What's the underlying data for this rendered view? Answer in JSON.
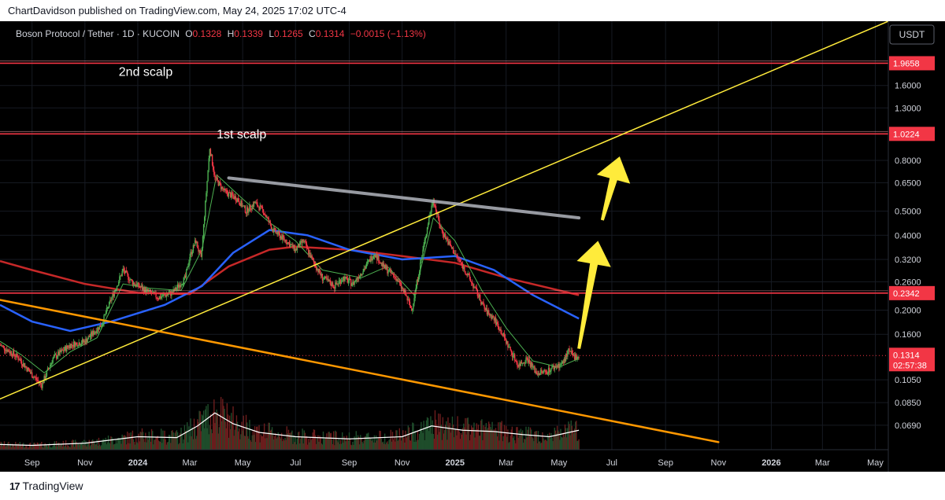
{
  "publish_line": "ChartDavidson published on TradingView.com, May 24, 2025 17:02 UTC-4",
  "footer": {
    "logo_glyph": "17",
    "brand": "TradingView"
  },
  "header": {
    "symbol": "Boson Protocol / Tether · 1D · KUCOIN",
    "o_label": "O",
    "o_value": "0.1328",
    "h_label": "H",
    "h_value": "0.1339",
    "l_label": "L",
    "l_value": "0.1265",
    "c_label": "C",
    "c_value": "0.1314",
    "change": "−0.0015 (−1.13%)"
  },
  "currency_button": "USDT",
  "price_badge": {
    "price": "0.1314",
    "countdown": "02:57:38",
    "color": "#f23645"
  },
  "colors": {
    "background": "#000000",
    "up": "#4caf50",
    "down": "#f23645",
    "resistance": "#f23645",
    "trendline": "#ffeb3b",
    "descending_line": "#ff9800",
    "ma_fast": "#4caf50",
    "ma_mid": "#2962ff",
    "ma_slow": "#c62828",
    "gray_line": "#b2b5be",
    "arrows": "#ffeb3b",
    "volume_ma": "#ffffff"
  },
  "chart_data": {
    "type": "candlestick",
    "symbol": "Boson Protocol / Tether",
    "interval": "1D",
    "exchange": "KUCOIN",
    "y_scale": "log",
    "ylim": [
      0.055,
      2.9
    ],
    "y_ticks": [
      "1.6000",
      "1.3000",
      "0.8000",
      "0.6500",
      "0.5000",
      "0.4000",
      "0.3200",
      "0.2600",
      "0.2000",
      "0.1600",
      "0.1050",
      "0.0850",
      "0.0690"
    ],
    "x_range": [
      "2023-07-26",
      "2026-05-16"
    ],
    "x_ticks": [
      {
        "label": "Sep",
        "date": "2023-09-01",
        "bold": false
      },
      {
        "label": "Nov",
        "date": "2023-11-01",
        "bold": false
      },
      {
        "label": "2024",
        "date": "2024-01-01",
        "bold": true
      },
      {
        "label": "Mar",
        "date": "2024-03-01",
        "bold": false
      },
      {
        "label": "May",
        "date": "2024-05-01",
        "bold": false
      },
      {
        "label": "Jul",
        "date": "2024-07-01",
        "bold": false
      },
      {
        "label": "Sep",
        "date": "2024-09-01",
        "bold": false
      },
      {
        "label": "Nov",
        "date": "2024-11-01",
        "bold": false
      },
      {
        "label": "2025",
        "date": "2025-01-01",
        "bold": true
      },
      {
        "label": "Mar",
        "date": "2025-03-01",
        "bold": false
      },
      {
        "label": "May",
        "date": "2025-05-01",
        "bold": false
      },
      {
        "label": "Jul",
        "date": "2025-07-01",
        "bold": false
      },
      {
        "label": "Sep",
        "date": "2025-09-01",
        "bold": false
      },
      {
        "label": "Nov",
        "date": "2025-11-01",
        "bold": false
      },
      {
        "label": "2026",
        "date": "2026-01-01",
        "bold": true
      },
      {
        "label": "Mar",
        "date": "2026-03-01",
        "bold": false
      },
      {
        "label": "May",
        "date": "2026-05-01",
        "bold": false
      }
    ],
    "price_path": [
      [
        "2023-07-26",
        0.145
      ],
      [
        "2023-08-15",
        0.13
      ],
      [
        "2023-09-01",
        0.11
      ],
      [
        "2023-09-12",
        0.1
      ],
      [
        "2023-09-25",
        0.128
      ],
      [
        "2023-10-15",
        0.145
      ],
      [
        "2023-11-01",
        0.15
      ],
      [
        "2023-11-20",
        0.175
      ],
      [
        "2023-12-01",
        0.22
      ],
      [
        "2023-12-15",
        0.29
      ],
      [
        "2023-12-25",
        0.26
      ],
      [
        "2024-01-10",
        0.24
      ],
      [
        "2024-01-25",
        0.225
      ],
      [
        "2024-02-10",
        0.235
      ],
      [
        "2024-02-25",
        0.27
      ],
      [
        "2024-03-01",
        0.33
      ],
      [
        "2024-03-08",
        0.38
      ],
      [
        "2024-03-14",
        0.32
      ],
      [
        "2024-03-24",
        0.9
      ],
      [
        "2024-03-30",
        0.68
      ],
      [
        "2024-04-10",
        0.6
      ],
      [
        "2024-04-25",
        0.56
      ],
      [
        "2024-05-05",
        0.5
      ],
      [
        "2024-05-15",
        0.54
      ],
      [
        "2024-05-25",
        0.5
      ],
      [
        "2024-06-05",
        0.42
      ],
      [
        "2024-06-20",
        0.38
      ],
      [
        "2024-07-01",
        0.35
      ],
      [
        "2024-07-10",
        0.38
      ],
      [
        "2024-07-20",
        0.32
      ],
      [
        "2024-08-01",
        0.27
      ],
      [
        "2024-08-15",
        0.25
      ],
      [
        "2024-08-25",
        0.27
      ],
      [
        "2024-09-05",
        0.255
      ],
      [
        "2024-09-20",
        0.3
      ],
      [
        "2024-09-30",
        0.34
      ],
      [
        "2024-10-10",
        0.3
      ],
      [
        "2024-10-25",
        0.27
      ],
      [
        "2024-11-05",
        0.23
      ],
      [
        "2024-11-12",
        0.2
      ],
      [
        "2024-11-20",
        0.28
      ],
      [
        "2024-12-01",
        0.45
      ],
      [
        "2024-12-07",
        0.56
      ],
      [
        "2024-12-15",
        0.43
      ],
      [
        "2024-12-25",
        0.37
      ],
      [
        "2025-01-10",
        0.3
      ],
      [
        "2025-01-25",
        0.24
      ],
      [
        "2025-02-05",
        0.2
      ],
      [
        "2025-02-15",
        0.185
      ],
      [
        "2025-02-25",
        0.16
      ],
      [
        "2025-03-05",
        0.14
      ],
      [
        "2025-03-15",
        0.12
      ],
      [
        "2025-03-25",
        0.128
      ],
      [
        "2025-04-05",
        0.112
      ],
      [
        "2025-04-15",
        0.113
      ],
      [
        "2025-04-25",
        0.118
      ],
      [
        "2025-05-05",
        0.122
      ],
      [
        "2025-05-12",
        0.137
      ],
      [
        "2025-05-18",
        0.13
      ],
      [
        "2025-05-24",
        0.1314
      ]
    ],
    "moving_averages": [
      {
        "color": "#c62828",
        "points": [
          [
            "2023-07-26",
            0.315
          ],
          [
            "2023-09-01",
            0.29
          ],
          [
            "2023-11-01",
            0.255
          ],
          [
            "2024-01-01",
            0.235
          ],
          [
            "2024-03-01",
            0.232
          ],
          [
            "2024-04-15",
            0.3
          ],
          [
            "2024-06-01",
            0.35
          ],
          [
            "2024-07-01",
            0.36
          ],
          [
            "2024-09-01",
            0.35
          ],
          [
            "2024-11-01",
            0.33
          ],
          [
            "2025-01-01",
            0.31
          ],
          [
            "2025-03-01",
            0.27
          ],
          [
            "2025-05-24",
            0.23
          ]
        ]
      },
      {
        "color": "#2962ff",
        "points": [
          [
            "2023-07-26",
            0.21
          ],
          [
            "2023-09-01",
            0.18
          ],
          [
            "2023-10-15",
            0.165
          ],
          [
            "2023-12-01",
            0.18
          ],
          [
            "2024-02-01",
            0.21
          ],
          [
            "2024-03-15",
            0.25
          ],
          [
            "2024-04-20",
            0.34
          ],
          [
            "2024-06-01",
            0.42
          ],
          [
            "2024-07-15",
            0.4
          ],
          [
            "2024-09-01",
            0.35
          ],
          [
            "2024-11-01",
            0.32
          ],
          [
            "2025-01-01",
            0.33
          ],
          [
            "2025-02-15",
            0.29
          ],
          [
            "2025-04-01",
            0.23
          ],
          [
            "2025-05-24",
            0.185
          ]
        ]
      },
      {
        "color": "#4caf50",
        "points": [
          [
            "2023-07-26",
            0.15
          ],
          [
            "2023-08-20",
            0.132
          ],
          [
            "2023-09-15",
            0.112
          ],
          [
            "2023-10-15",
            0.136
          ],
          [
            "2023-11-15",
            0.155
          ],
          [
            "2023-12-15",
            0.255
          ],
          [
            "2024-01-15",
            0.245
          ],
          [
            "2024-02-20",
            0.24
          ],
          [
            "2024-03-15",
            0.35
          ],
          [
            "2024-04-01",
            0.7
          ],
          [
            "2024-05-01",
            0.56
          ],
          [
            "2024-06-01",
            0.45
          ],
          [
            "2024-07-01",
            0.38
          ],
          [
            "2024-08-01",
            0.29
          ],
          [
            "2024-09-15",
            0.27
          ],
          [
            "2024-10-15",
            0.3
          ],
          [
            "2024-11-15",
            0.23
          ],
          [
            "2024-12-07",
            0.47
          ],
          [
            "2025-01-01",
            0.38
          ],
          [
            "2025-02-01",
            0.24
          ],
          [
            "2025-03-01",
            0.17
          ],
          [
            "2025-04-01",
            0.125
          ],
          [
            "2025-05-01",
            0.118
          ],
          [
            "2025-05-24",
            0.128
          ]
        ]
      }
    ],
    "volume_ma": [
      [
        "2023-07-26",
        0.12
      ],
      [
        "2023-09-01",
        0.1
      ],
      [
        "2023-11-01",
        0.15
      ],
      [
        "2024-01-01",
        0.3
      ],
      [
        "2024-02-15",
        0.28
      ],
      [
        "2024-03-10",
        0.55
      ],
      [
        "2024-03-30",
        0.85
      ],
      [
        "2024-04-20",
        0.6
      ],
      [
        "2024-05-20",
        0.4
      ],
      [
        "2024-07-01",
        0.3
      ],
      [
        "2024-09-01",
        0.25
      ],
      [
        "2024-11-01",
        0.3
      ],
      [
        "2024-12-05",
        0.55
      ],
      [
        "2025-01-10",
        0.45
      ],
      [
        "2025-02-15",
        0.42
      ],
      [
        "2025-03-20",
        0.35
      ],
      [
        "2025-04-20",
        0.3
      ],
      [
        "2025-05-24",
        0.45
      ]
    ],
    "horizontal_levels": [
      {
        "value": 1.9658,
        "label": "1.9658"
      },
      {
        "value": 1.0224,
        "label": "1.0224"
      },
      {
        "value": 0.2342,
        "label": "0.2342"
      }
    ],
    "current_price": 0.1314,
    "trendlines": [
      {
        "name": "ascending",
        "color": "#ffeb3b",
        "from": [
          "2023-07-26",
          0.088
        ],
        "to": [
          "2026-05-16",
          2.9
        ]
      },
      {
        "name": "descending",
        "color": "#ff9800",
        "from": [
          "2023-07-26",
          0.22
        ],
        "to": [
          "2025-11-01",
          0.059
        ]
      },
      {
        "name": "gray",
        "color": "#b2b5be",
        "from": [
          "2024-04-15",
          0.68
        ],
        "to": [
          "2025-05-24",
          0.47
        ]
      }
    ],
    "arrows": [
      {
        "from": [
          "2025-05-24",
          0.14
        ],
        "to": [
          "2025-06-15",
          0.38
        ]
      },
      {
        "from": [
          "2025-06-20",
          0.46
        ],
        "to": [
          "2025-07-10",
          0.83
        ]
      }
    ],
    "annotations": [
      {
        "text": "2nd scalp",
        "date": "2023-12-10",
        "value": 1.75
      },
      {
        "text": "1st scalp",
        "date": "2024-04-01",
        "value": 0.98
      }
    ]
  }
}
